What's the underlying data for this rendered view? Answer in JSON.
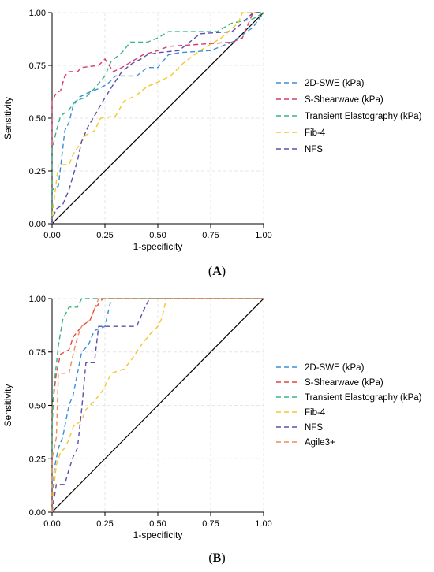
{
  "figure": {
    "panels": [
      {
        "label": "(A)",
        "label_bold": "A"
      },
      {
        "label": "(B)",
        "label_bold": "B"
      }
    ]
  },
  "chart_data": [
    {
      "type": "line",
      "panel": "A",
      "xlabel": "1-specificity",
      "ylabel": "Sensitivity",
      "xlim": [
        0,
        1
      ],
      "ylim": [
        0,
        1
      ],
      "xticks": [
        "0.00",
        "0.25",
        "0.50",
        "0.75",
        "1.00"
      ],
      "yticks": [
        "0.00",
        "0.25",
        "0.50",
        "0.75",
        "1.00"
      ],
      "grid": true,
      "legend_position": "right",
      "reference_line": {
        "from": [
          0,
          0
        ],
        "to": [
          1,
          1
        ],
        "color": "#000000"
      },
      "series": [
        {
          "name": "2D-SWE (kPa)",
          "color": "#3a8fd9",
          "points": [
            [
              0,
              0
            ],
            [
              0,
              0.16
            ],
            [
              0.03,
              0.18
            ],
            [
              0.06,
              0.44
            ],
            [
              0.08,
              0.48
            ],
            [
              0.1,
              0.56
            ],
            [
              0.13,
              0.6
            ],
            [
              0.17,
              0.62
            ],
            [
              0.22,
              0.64
            ],
            [
              0.26,
              0.66
            ],
            [
              0.3,
              0.7
            ],
            [
              0.4,
              0.7
            ],
            [
              0.45,
              0.74
            ],
            [
              0.5,
              0.74
            ],
            [
              0.55,
              0.8
            ],
            [
              0.6,
              0.81
            ],
            [
              0.75,
              0.82
            ],
            [
              0.85,
              0.86
            ],
            [
              0.95,
              0.93
            ],
            [
              1,
              1
            ]
          ]
        },
        {
          "name": "S-Shearwave (kPa)",
          "color": "#d63a6e",
          "points": [
            [
              0,
              0
            ],
            [
              0,
              0.58
            ],
            [
              0.02,
              0.62
            ],
            [
              0.04,
              0.63
            ],
            [
              0.06,
              0.7
            ],
            [
              0.08,
              0.72
            ],
            [
              0.12,
              0.72
            ],
            [
              0.14,
              0.74
            ],
            [
              0.22,
              0.75
            ],
            [
              0.25,
              0.78
            ],
            [
              0.29,
              0.72
            ],
            [
              0.33,
              0.74
            ],
            [
              0.38,
              0.77
            ],
            [
              0.43,
              0.8
            ],
            [
              0.5,
              0.82
            ],
            [
              0.55,
              0.84
            ],
            [
              0.85,
              0.86
            ],
            [
              0.9,
              0.88
            ],
            [
              0.95,
              1
            ],
            [
              1,
              1
            ]
          ]
        },
        {
          "name": "Transient Elastography (kPa)",
          "color": "#35b77f",
          "points": [
            [
              0,
              0
            ],
            [
              0,
              0.35
            ],
            [
              0.02,
              0.44
            ],
            [
              0.04,
              0.51
            ],
            [
              0.08,
              0.54
            ],
            [
              0.11,
              0.58
            ],
            [
              0.16,
              0.6
            ],
            [
              0.2,
              0.64
            ],
            [
              0.25,
              0.7
            ],
            [
              0.28,
              0.77
            ],
            [
              0.33,
              0.81
            ],
            [
              0.37,
              0.86
            ],
            [
              0.45,
              0.86
            ],
            [
              0.5,
              0.88
            ],
            [
              0.55,
              0.91
            ],
            [
              0.78,
              0.91
            ],
            [
              0.85,
              0.95
            ],
            [
              0.95,
              0.97
            ],
            [
              1,
              1
            ]
          ]
        },
        {
          "name": "Fib-4",
          "color": "#f4c82a",
          "points": [
            [
              0,
              0
            ],
            [
              0,
              0.03
            ],
            [
              0.02,
              0.2
            ],
            [
              0.03,
              0.28
            ],
            [
              0.08,
              0.28
            ],
            [
              0.1,
              0.33
            ],
            [
              0.12,
              0.36
            ],
            [
              0.16,
              0.42
            ],
            [
              0.2,
              0.44
            ],
            [
              0.23,
              0.5
            ],
            [
              0.3,
              0.51
            ],
            [
              0.34,
              0.58
            ],
            [
              0.4,
              0.61
            ],
            [
              0.45,
              0.65
            ],
            [
              0.5,
              0.67
            ],
            [
              0.56,
              0.7
            ],
            [
              0.62,
              0.76
            ],
            [
              0.7,
              0.82
            ],
            [
              0.8,
              0.88
            ],
            [
              0.88,
              0.95
            ],
            [
              0.9,
              1
            ],
            [
              1,
              1
            ]
          ]
        },
        {
          "name": "NFS",
          "color": "#5e4fa8",
          "points": [
            [
              0,
              0
            ],
            [
              0,
              0.02
            ],
            [
              0.02,
              0.07
            ],
            [
              0.05,
              0.09
            ],
            [
              0.08,
              0.16
            ],
            [
              0.1,
              0.23
            ],
            [
              0.12,
              0.3
            ],
            [
              0.14,
              0.39
            ],
            [
              0.17,
              0.46
            ],
            [
              0.2,
              0.51
            ],
            [
              0.24,
              0.58
            ],
            [
              0.29,
              0.66
            ],
            [
              0.33,
              0.72
            ],
            [
              0.38,
              0.76
            ],
            [
              0.42,
              0.78
            ],
            [
              0.45,
              0.8
            ],
            [
              0.5,
              0.81
            ],
            [
              0.6,
              0.82
            ],
            [
              0.65,
              0.86
            ],
            [
              0.7,
              0.9
            ],
            [
              0.85,
              0.91
            ],
            [
              0.9,
              0.95
            ],
            [
              0.95,
              1
            ],
            [
              1,
              1
            ]
          ]
        }
      ]
    },
    {
      "type": "line",
      "panel": "B",
      "xlabel": "1-specificity",
      "ylabel": "Sensitivity",
      "xlim": [
        0,
        1
      ],
      "ylim": [
        0,
        1
      ],
      "xticks": [
        "0.00",
        "0.25",
        "0.50",
        "0.75",
        "1.00"
      ],
      "yticks": [
        "0.00",
        "0.25",
        "0.50",
        "0.75",
        "1.00"
      ],
      "grid": true,
      "legend_position": "right",
      "reference_line": {
        "from": [
          0,
          0
        ],
        "to": [
          1,
          1
        ],
        "color": "#000000"
      },
      "series": [
        {
          "name": "2D-SWE (kPa)",
          "color": "#3a8fd9",
          "points": [
            [
              0,
              0
            ],
            [
              0.01,
              0.2
            ],
            [
              0.03,
              0.3
            ],
            [
              0.05,
              0.35
            ],
            [
              0.08,
              0.5
            ],
            [
              0.1,
              0.55
            ],
            [
              0.12,
              0.65
            ],
            [
              0.14,
              0.75
            ],
            [
              0.17,
              0.78
            ],
            [
              0.2,
              0.85
            ],
            [
              0.25,
              0.87
            ],
            [
              0.28,
              1
            ],
            [
              1,
              1
            ]
          ]
        },
        {
          "name": "S-Shearwave (kPa)",
          "color": "#e0473d",
          "points": [
            [
              0,
              0
            ],
            [
              0,
              0.48
            ],
            [
              0.02,
              0.65
            ],
            [
              0.04,
              0.74
            ],
            [
              0.08,
              0.76
            ],
            [
              0.1,
              0.82
            ],
            [
              0.14,
              0.87
            ],
            [
              0.18,
              0.9
            ],
            [
              0.2,
              0.95
            ],
            [
              0.24,
              1
            ],
            [
              1,
              1
            ]
          ]
        },
        {
          "name": "Transient Elastography (kPa)",
          "color": "#35b77f",
          "points": [
            [
              0,
              0
            ],
            [
              0,
              0.4
            ],
            [
              0.01,
              0.6
            ],
            [
              0.03,
              0.78
            ],
            [
              0.05,
              0.9
            ],
            [
              0.08,
              0.96
            ],
            [
              0.12,
              0.96
            ],
            [
              0.14,
              1
            ],
            [
              1,
              1
            ]
          ]
        },
        {
          "name": "Fib-4",
          "color": "#f4c82a",
          "points": [
            [
              0,
              0
            ],
            [
              0,
              0.04
            ],
            [
              0.02,
              0.22
            ],
            [
              0.04,
              0.28
            ],
            [
              0.06,
              0.3
            ],
            [
              0.08,
              0.34
            ],
            [
              0.1,
              0.4
            ],
            [
              0.14,
              0.43
            ],
            [
              0.16,
              0.48
            ],
            [
              0.2,
              0.52
            ],
            [
              0.24,
              0.57
            ],
            [
              0.28,
              0.65
            ],
            [
              0.34,
              0.67
            ],
            [
              0.38,
              0.72
            ],
            [
              0.42,
              0.78
            ],
            [
              0.46,
              0.83
            ],
            [
              0.5,
              0.87
            ],
            [
              0.52,
              0.91
            ],
            [
              0.54,
              1
            ],
            [
              1,
              1
            ]
          ]
        },
        {
          "name": "NFS",
          "color": "#5e4fa8",
          "points": [
            [
              0,
              0
            ],
            [
              0.02,
              0.13
            ],
            [
              0.06,
              0.13
            ],
            [
              0.08,
              0.2
            ],
            [
              0.1,
              0.26
            ],
            [
              0.12,
              0.3
            ],
            [
              0.14,
              0.48
            ],
            [
              0.16,
              0.7
            ],
            [
              0.2,
              0.7
            ],
            [
              0.22,
              0.87
            ],
            [
              0.4,
              0.87
            ],
            [
              0.44,
              0.96
            ],
            [
              0.46,
              1
            ],
            [
              1,
              1
            ]
          ]
        },
        {
          "name": "Agile3+",
          "color": "#f08a5d",
          "points": [
            [
              0,
              0
            ],
            [
              0,
              0.25
            ],
            [
              0.02,
              0.35
            ],
            [
              0.03,
              0.65
            ],
            [
              0.08,
              0.65
            ],
            [
              0.1,
              0.74
            ],
            [
              0.12,
              0.82
            ],
            [
              0.14,
              0.87
            ],
            [
              0.18,
              0.9
            ],
            [
              0.2,
              0.95
            ],
            [
              0.22,
              1
            ],
            [
              1,
              1
            ]
          ]
        }
      ]
    }
  ]
}
